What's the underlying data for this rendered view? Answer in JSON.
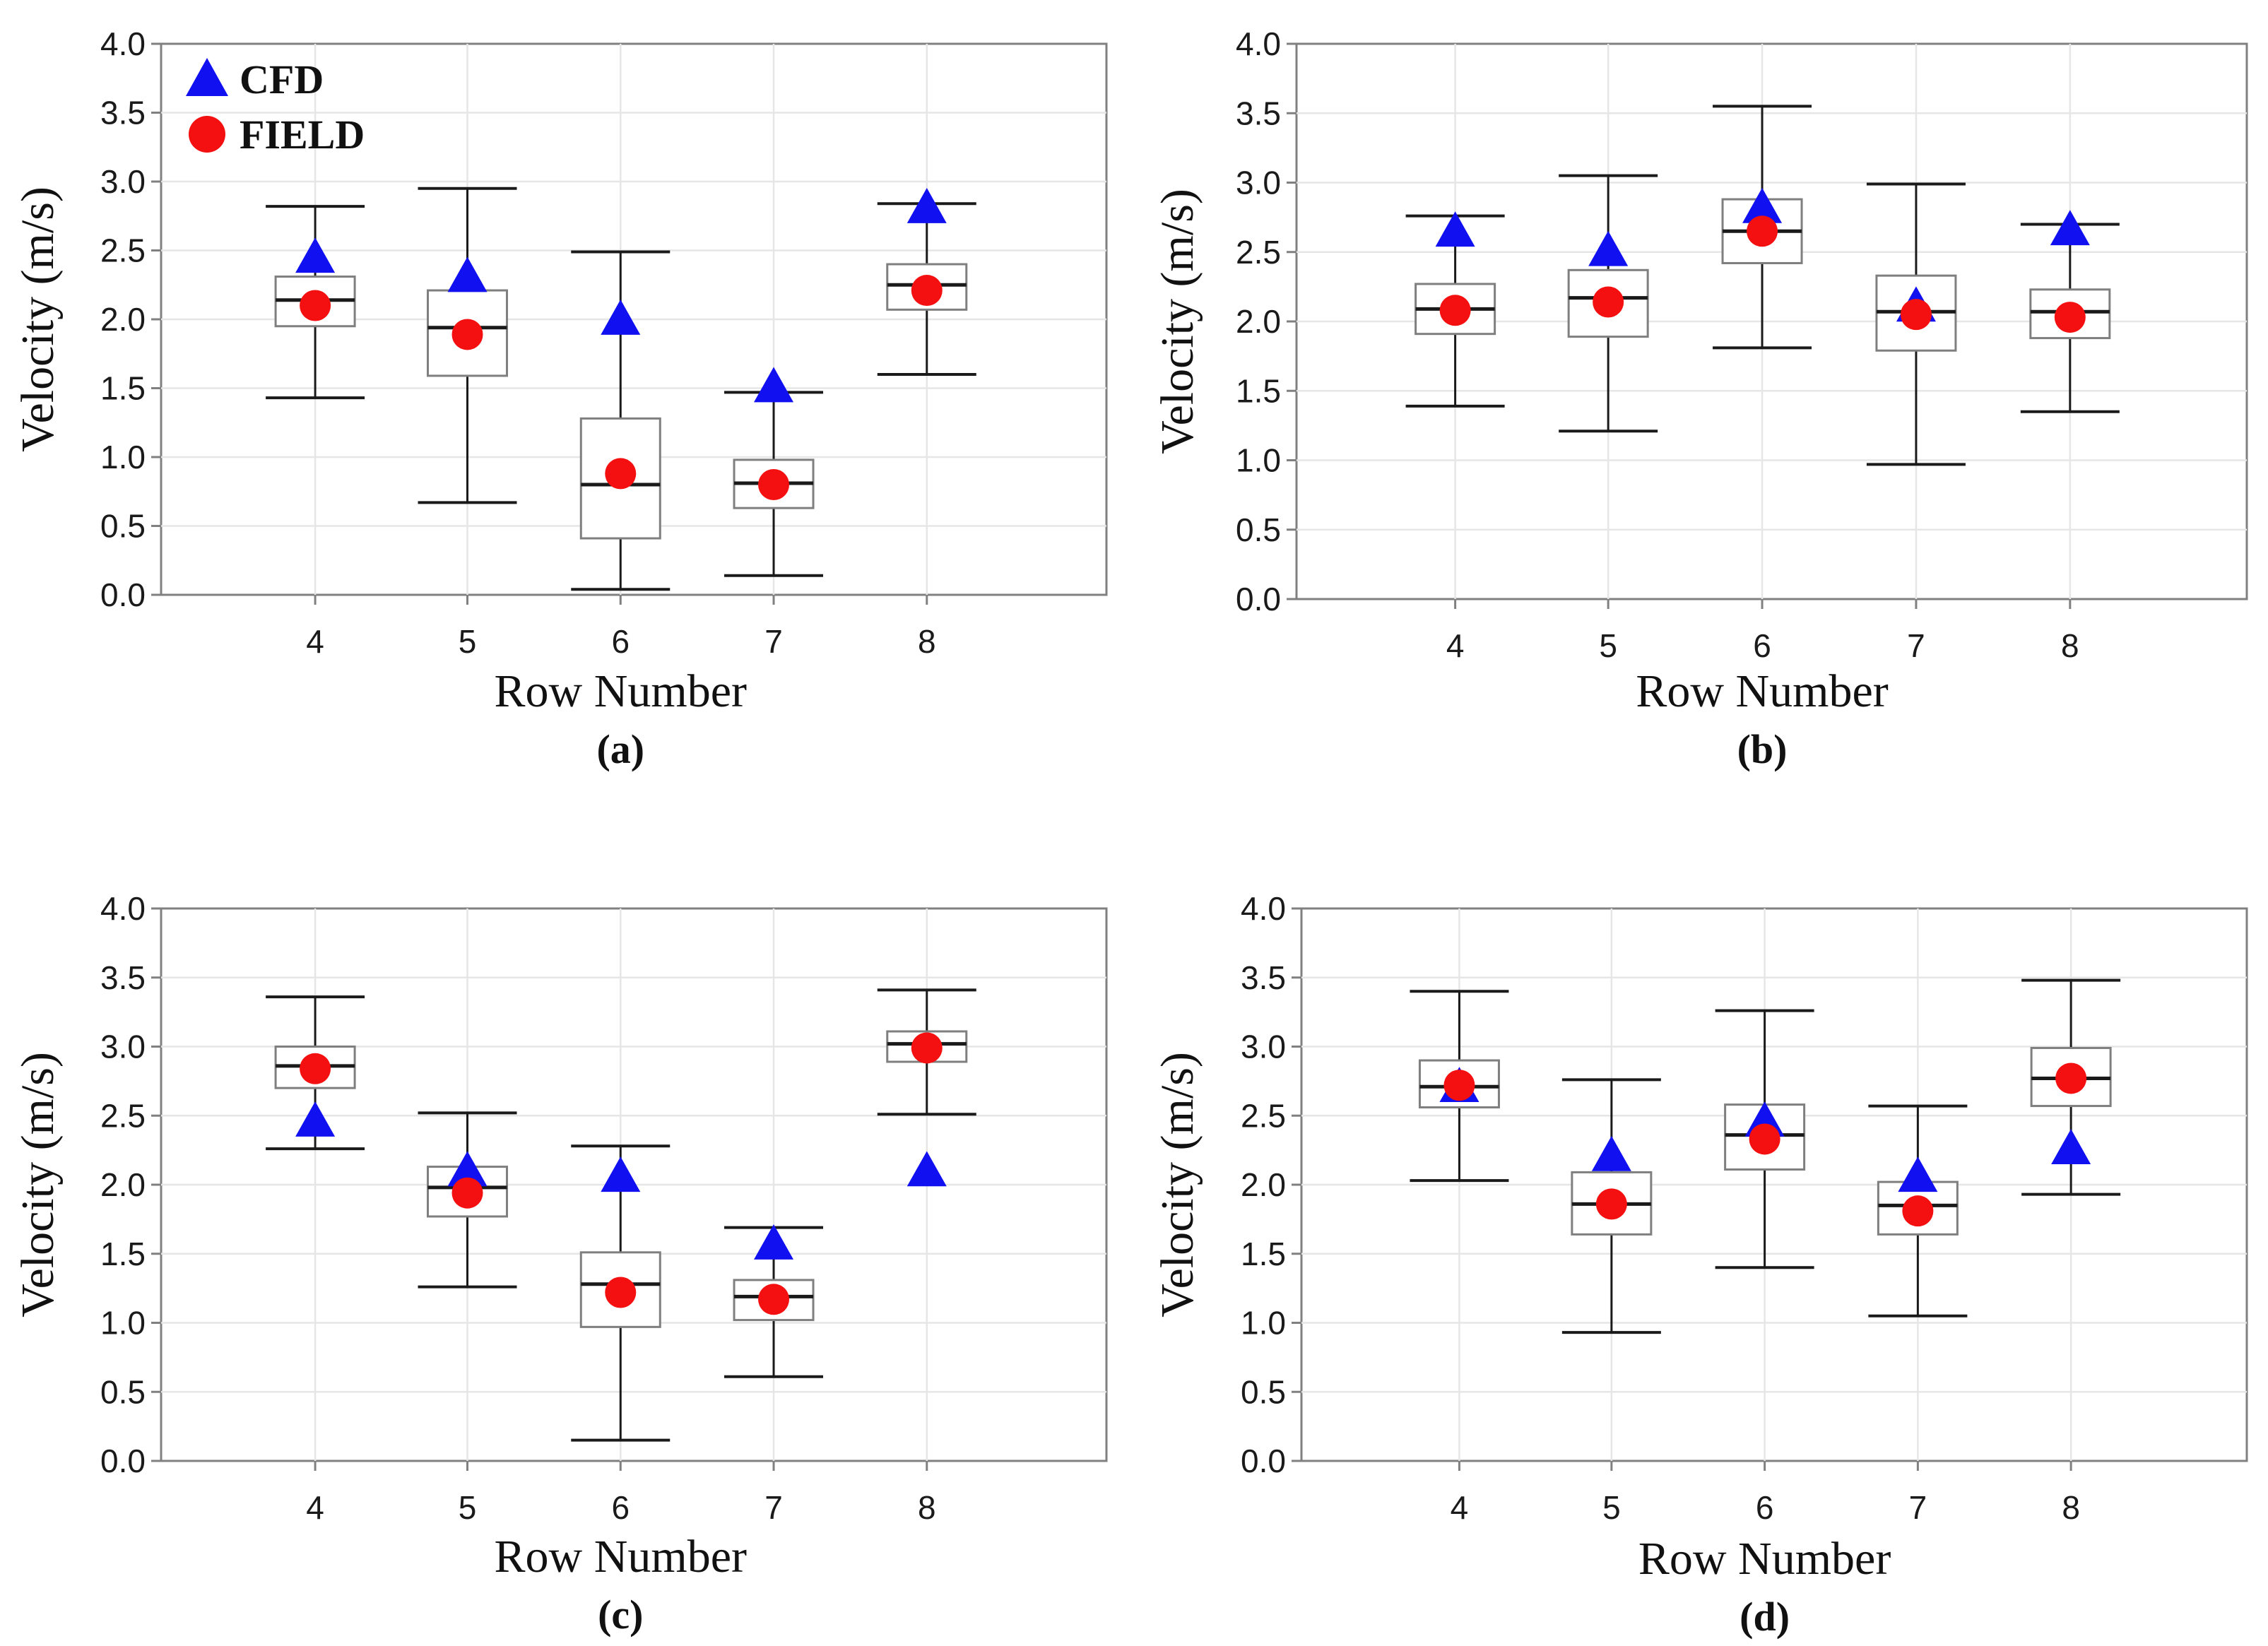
{
  "chart_data": [
    {
      "type": "box",
      "panel_label": "(a)",
      "xlabel": "Row Number",
      "ylabel": "Velocity (m/s)",
      "ylim": [
        0,
        4
      ],
      "yticks": [
        "0.0",
        "0.5",
        "1.0",
        "1.5",
        "2.0",
        "2.5",
        "3.0",
        "3.5",
        "4.0"
      ],
      "categories": [
        "4",
        "5",
        "6",
        "7",
        "8"
      ],
      "legend": {
        "position": "top-left",
        "entries": [
          "CFD",
          "FIELD"
        ]
      },
      "boxes": [
        {
          "min": 1.43,
          "q1": 1.95,
          "median": 2.14,
          "q3": 2.31,
          "max": 2.82
        },
        {
          "min": 0.67,
          "q1": 1.59,
          "median": 1.94,
          "q3": 2.21,
          "max": 2.95
        },
        {
          "min": 0.04,
          "q1": 0.41,
          "median": 0.8,
          "q3": 1.28,
          "max": 2.49
        },
        {
          "min": 0.14,
          "q1": 0.63,
          "median": 0.81,
          "q3": 0.98,
          "max": 1.47
        },
        {
          "min": 1.6,
          "q1": 2.07,
          "median": 2.25,
          "q3": 2.4,
          "max": 2.84
        }
      ],
      "series": [
        {
          "name": "CFD",
          "marker": "triangle",
          "values": [
            2.45,
            2.31,
            2.0,
            1.51,
            2.81
          ]
        },
        {
          "name": "FIELD",
          "marker": "circle",
          "values": [
            2.1,
            1.89,
            0.88,
            0.8,
            2.21
          ]
        }
      ]
    },
    {
      "type": "box",
      "panel_label": "(b)",
      "xlabel": "Row Number",
      "ylabel": "Velocity (m/s)",
      "ylim": [
        0,
        4
      ],
      "yticks": [
        "0.0",
        "0.5",
        "1.0",
        "1.5",
        "2.0",
        "2.5",
        "3.0",
        "3.5",
        "4.0"
      ],
      "categories": [
        "4",
        "5",
        "6",
        "7",
        "8"
      ],
      "boxes": [
        {
          "min": 1.39,
          "q1": 1.91,
          "median": 2.09,
          "q3": 2.27,
          "max": 2.76
        },
        {
          "min": 1.21,
          "q1": 1.89,
          "median": 2.17,
          "q3": 2.37,
          "max": 3.05
        },
        {
          "min": 1.81,
          "q1": 2.42,
          "median": 2.65,
          "q3": 2.88,
          "max": 3.55
        },
        {
          "min": 0.97,
          "q1": 1.79,
          "median": 2.07,
          "q3": 2.33,
          "max": 2.99
        },
        {
          "min": 1.35,
          "q1": 1.88,
          "median": 2.07,
          "q3": 2.23,
          "max": 2.7
        }
      ],
      "series": [
        {
          "name": "CFD",
          "marker": "triangle",
          "values": [
            2.65,
            2.51,
            2.82,
            2.11,
            2.66
          ]
        },
        {
          "name": "FIELD",
          "marker": "circle",
          "values": [
            2.08,
            2.14,
            2.65,
            2.05,
            2.03
          ]
        }
      ]
    },
    {
      "type": "box",
      "panel_label": "(c)",
      "xlabel": "Row Number",
      "ylabel": "Velocity (m/s)",
      "ylim": [
        0,
        4
      ],
      "yticks": [
        "0.0",
        "0.5",
        "1.0",
        "1.5",
        "2.0",
        "2.5",
        "3.0",
        "3.5",
        "4.0"
      ],
      "categories": [
        "4",
        "5",
        "6",
        "7",
        "8"
      ],
      "boxes": [
        {
          "min": 2.26,
          "q1": 2.7,
          "median": 2.86,
          "q3": 3.0,
          "max": 3.36
        },
        {
          "min": 1.26,
          "q1": 1.77,
          "median": 1.98,
          "q3": 2.13,
          "max": 2.52
        },
        {
          "min": 0.15,
          "q1": 0.97,
          "median": 1.28,
          "q3": 1.51,
          "max": 2.28
        },
        {
          "min": 0.61,
          "q1": 1.02,
          "median": 1.19,
          "q3": 1.31,
          "max": 1.69
        },
        {
          "min": 2.51,
          "q1": 2.89,
          "median": 3.02,
          "q3": 3.11,
          "max": 3.41
        }
      ],
      "series": [
        {
          "name": "CFD",
          "marker": "triangle",
          "values": [
            2.46,
            2.1,
            2.06,
            1.57,
            2.1
          ]
        },
        {
          "name": "FIELD",
          "marker": "circle",
          "values": [
            2.84,
            1.94,
            1.22,
            1.17,
            2.99
          ]
        }
      ]
    },
    {
      "type": "box",
      "panel_label": "(d)",
      "xlabel": "Row Number",
      "ylabel": "Velocity (m/s)",
      "ylim": [
        0,
        4
      ],
      "yticks": [
        "0.0",
        "0.5",
        "1.0",
        "1.5",
        "2.0",
        "2.5",
        "3.0",
        "3.5",
        "4.0"
      ],
      "categories": [
        "4",
        "5",
        "6",
        "7",
        "8"
      ],
      "boxes": [
        {
          "min": 2.03,
          "q1": 2.56,
          "median": 2.71,
          "q3": 2.9,
          "max": 3.4
        },
        {
          "min": 0.93,
          "q1": 1.64,
          "median": 1.86,
          "q3": 2.09,
          "max": 2.76
        },
        {
          "min": 1.4,
          "q1": 2.11,
          "median": 2.36,
          "q3": 2.58,
          "max": 3.26
        },
        {
          "min": 1.05,
          "q1": 1.64,
          "median": 1.85,
          "q3": 2.02,
          "max": 2.57
        },
        {
          "min": 1.93,
          "q1": 2.57,
          "median": 2.77,
          "q3": 2.99,
          "max": 3.48
        }
      ],
      "series": [
        {
          "name": "CFD",
          "marker": "triangle",
          "values": [
            2.71,
            2.21,
            2.46,
            2.06,
            2.26
          ]
        },
        {
          "name": "FIELD",
          "marker": "circle",
          "values": [
            2.72,
            1.86,
            2.33,
            1.81,
            2.77
          ]
        }
      ]
    }
  ],
  "colors": {
    "cfd": "#1010f0",
    "field": "#f41010",
    "box": "#7f7f7f",
    "whisker": "#1a1a1a",
    "grid": "#e6e6e6",
    "axis": "#808080"
  }
}
